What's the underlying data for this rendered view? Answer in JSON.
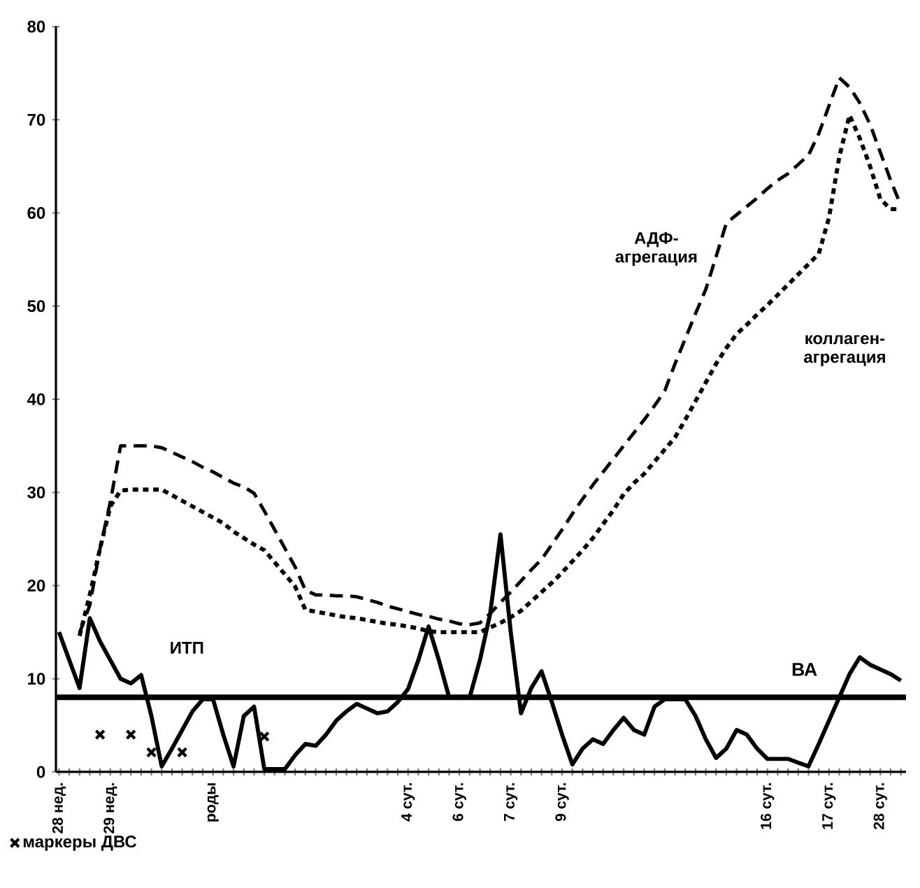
{
  "chart_data": {
    "type": "line",
    "ylim": [
      0,
      80
    ],
    "yticks": [
      0,
      10,
      20,
      30,
      40,
      50,
      60,
      70,
      80
    ],
    "categories": [
      "28 нед.",
      null,
      null,
      null,
      null,
      "29 нед.",
      null,
      null,
      null,
      null,
      null,
      null,
      null,
      null,
      null,
      "роды",
      null,
      null,
      null,
      null,
      null,
      null,
      null,
      null,
      null,
      null,
      null,
      null,
      null,
      null,
      null,
      null,
      null,
      null,
      "4 сут.",
      null,
      null,
      null,
      null,
      "6 сут.",
      null,
      null,
      null,
      null,
      "7 сут.",
      null,
      null,
      null,
      null,
      "9 сут.",
      null,
      null,
      null,
      null,
      null,
      null,
      null,
      null,
      null,
      null,
      null,
      null,
      null,
      null,
      null,
      null,
      null,
      null,
      null,
      "16 сут.",
      null,
      null,
      null,
      null,
      null,
      "17 сут.",
      null,
      null,
      null,
      null,
      "28 сут.",
      null,
      null
    ],
    "series": [
      {
        "name": "ИТП",
        "color": "#000000",
        "line_style": "solid",
        "values": [
          15,
          12,
          9,
          16.5,
          14,
          12,
          10,
          9.5,
          10.4,
          6,
          0.6,
          2.5,
          4.5,
          6.5,
          7.8,
          7.8,
          4,
          0.6,
          6,
          7,
          0.3,
          0.3,
          0.3,
          1.8,
          3,
          2.8,
          4,
          5.5,
          6.5,
          7.3,
          6.8,
          6.3,
          6.5,
          7.5,
          8.9,
          12,
          15.6,
          12,
          8,
          8,
          8,
          12,
          17,
          25.5,
          15,
          6.3,
          9,
          10.8,
          7.5,
          4,
          0.8,
          2.5,
          3.5,
          3,
          4.5,
          5.8,
          4.5,
          4,
          7,
          7.8,
          7.8,
          7.8,
          6,
          3.5,
          1.5,
          2.5,
          4.5,
          4,
          2.5,
          1.4,
          1.4,
          1.4,
          1,
          0.6,
          3,
          5.5,
          8,
          10.5,
          12.3,
          11.5,
          11,
          10.5,
          9.8
        ]
      },
      {
        "name": "АДФ-агрегация",
        "color": "#000000",
        "line_style": "dashed",
        "values": [
          null,
          null,
          14.9,
          17.9,
          24,
          29,
          35,
          35,
          35,
          35,
          34.8,
          34.3,
          33.8,
          33.3,
          32.7,
          32.2,
          31.6,
          31,
          30.6,
          29.9,
          28,
          26,
          24,
          22,
          19.5,
          19,
          19,
          18.9,
          18.9,
          18.8,
          18.5,
          18.2,
          17.8,
          17.5,
          17.2,
          16.9,
          16.7,
          16.4,
          16.2,
          15.9,
          15.8,
          16,
          17,
          18.2,
          19.3,
          20.5,
          21.7,
          22.8,
          24.4,
          26,
          27.7,
          29.3,
          30.8,
          32.2,
          33.6,
          35,
          36.4,
          37.8,
          39.3,
          40.9,
          43.8,
          46.5,
          49.2,
          51.8,
          55.3,
          58.9,
          59.8,
          60.7,
          61.6,
          62.6,
          63.5,
          64.2,
          65.2,
          66.2,
          68.5,
          71.5,
          74.5,
          73.5,
          71.8,
          69.5,
          66.5,
          63.5,
          60.8
        ]
      },
      {
        "name": "коллаген-агрегация",
        "color": "#000000",
        "line_style": "dotted",
        "values": [
          null,
          null,
          14.6,
          19,
          24,
          28.5,
          30.2,
          30.3,
          30.3,
          30.3,
          30.3,
          29.7,
          29.1,
          28.5,
          27.9,
          27.3,
          26.7,
          25.8,
          25.1,
          24.4,
          23.8,
          22.5,
          21.2,
          19.9,
          17.4,
          17.2,
          17,
          16.8,
          16.6,
          16.5,
          16.3,
          16.1,
          15.9,
          15.8,
          15.6,
          15.4,
          15.1,
          15,
          15,
          15,
          15,
          15,
          15.5,
          16,
          16.6,
          17.3,
          18.3,
          19.3,
          20.3,
          21.4,
          22.6,
          23.8,
          25.1,
          26.6,
          28.1,
          29.8,
          31,
          32,
          33.3,
          34.6,
          35.9,
          37.8,
          39.8,
          41.8,
          43.8,
          45.5,
          47,
          48,
          49.1,
          50.1,
          51.2,
          52.3,
          53.4,
          54.5,
          55.6,
          59.5,
          66,
          70.5,
          68,
          65,
          61.5,
          60.4,
          60.4
        ]
      },
      {
        "name": "маркеры ДВС",
        "type": "scatter",
        "color": "#000000",
        "marker": "cross",
        "values": [
          null,
          null,
          null,
          null,
          4,
          null,
          null,
          4,
          null,
          2.1,
          null,
          null,
          2.1,
          null,
          null,
          null,
          null,
          null,
          null,
          null,
          3.8,
          null,
          null,
          null,
          null,
          null,
          null,
          null,
          null,
          null,
          null,
          null,
          null,
          null,
          null,
          null,
          null,
          null,
          null,
          null,
          null,
          null,
          null,
          null,
          null,
          null,
          null,
          null,
          null,
          null,
          null,
          null,
          null,
          null,
          null,
          null,
          null,
          null,
          null,
          null,
          null,
          null,
          null,
          null,
          null,
          null,
          null,
          null,
          null,
          null,
          null,
          null,
          null,
          null,
          null,
          null,
          null,
          null,
          null,
          null,
          null,
          null,
          null
        ]
      }
    ],
    "ref_lines": [
      {
        "axis": "y",
        "value": 8,
        "label": "ВА",
        "color": "#000000",
        "line_style": "solid"
      }
    ],
    "legend": "bottom left",
    "grid": false
  }
}
